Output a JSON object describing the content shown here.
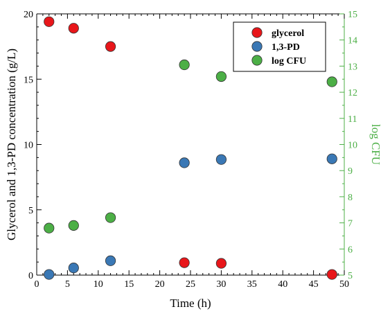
{
  "chart_data": {
    "type": "scatter",
    "xlabel": "Time (h)",
    "ylabel": "Glycerol and 1,3-PD concentration (g/L)",
    "y2label": "log CFU",
    "xlim": [
      0,
      50
    ],
    "ylim": [
      0,
      20
    ],
    "y2lim": [
      5,
      15
    ],
    "xticks": [
      0,
      5,
      10,
      15,
      20,
      25,
      30,
      35,
      40,
      45,
      50
    ],
    "yticks": [
      0,
      5,
      10,
      15,
      20
    ],
    "y2ticks": [
      5,
      6,
      7,
      8,
      9,
      10,
      11,
      12,
      13,
      14,
      15
    ],
    "grid": false,
    "legend_position": "top-right",
    "series": [
      {
        "name": "glycerol",
        "axis": "left",
        "color": "#e8161a",
        "x": [
          2,
          6,
          12,
          24,
          30,
          48
        ],
        "y": [
          19.4,
          18.9,
          17.5,
          0.95,
          0.9,
          0.05
        ]
      },
      {
        "name": "1,3-PD",
        "axis": "left",
        "color": "#3a78b5",
        "x": [
          2,
          6,
          12,
          24,
          30,
          48
        ],
        "y": [
          0.05,
          0.55,
          1.1,
          8.6,
          8.85,
          8.9
        ]
      },
      {
        "name": "log CFU",
        "axis": "right",
        "color": "#4caf46",
        "x": [
          2,
          6,
          12,
          24,
          30,
          48
        ],
        "y": [
          6.8,
          6.9,
          7.2,
          13.05,
          12.6,
          12.4
        ]
      }
    ],
    "right_axis_color": "#4caf46"
  }
}
